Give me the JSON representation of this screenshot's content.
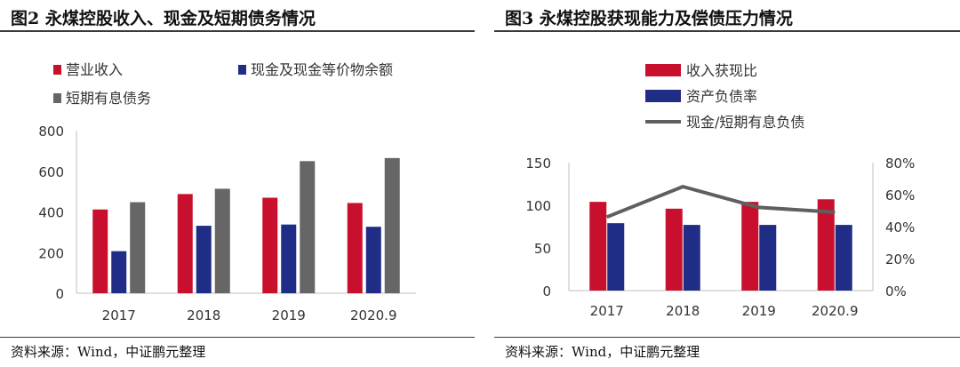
{
  "chart_data": [
    {
      "type": "bar",
      "title": "图2 永煤控股收入、现金及短期债务情况",
      "source": "资料来源：Wind，中证鹏元整理",
      "categories": [
        "2017",
        "2018",
        "2019",
        "2020.9"
      ],
      "series": [
        {
          "name": "营业收入",
          "values": [
            412,
            488,
            470,
            444
          ],
          "color": "#c8102e"
        },
        {
          "name": "现金及现金等价物余额",
          "values": [
            207,
            332,
            338,
            327
          ],
          "color": "#1f2d86"
        },
        {
          "name": "短期有息债务",
          "values": [
            448,
            514,
            650,
            665
          ],
          "color": "#666666"
        }
      ],
      "ylim": [
        0,
        800
      ],
      "yticks": [
        "0",
        "200",
        "400",
        "600",
        "800"
      ],
      "grid": false,
      "legend": "top-left"
    },
    {
      "type": "bar",
      "title": "图3 永煤控股获现能力及偿债压力情况",
      "source": "资料来源：Wind，中证鹏元整理",
      "categories": [
        "2017",
        "2018",
        "2019",
        "2020.9"
      ],
      "series": [
        {
          "name": "收入获现比",
          "type": "bar",
          "axis": "left",
          "values": [
            104,
            96,
            104,
            107
          ],
          "color": "#c8102e"
        },
        {
          "name": "资产负债率",
          "type": "bar",
          "axis": "left",
          "values": [
            79,
            77,
            77,
            77
          ],
          "color": "#1f2d86"
        },
        {
          "name": "现金/短期有息负债",
          "type": "line",
          "axis": "right",
          "values": [
            0.46,
            0.65,
            0.52,
            0.49
          ],
          "color": "#5f5f5f"
        }
      ],
      "ylim": [
        0,
        150
      ],
      "yticks": [
        "0",
        "50",
        "100",
        "150"
      ],
      "y2lim": [
        0,
        0.8
      ],
      "y2ticks": [
        "0%",
        "20%",
        "40%",
        "60%",
        "80%"
      ],
      "grid": false,
      "legend": "top-center"
    }
  ]
}
